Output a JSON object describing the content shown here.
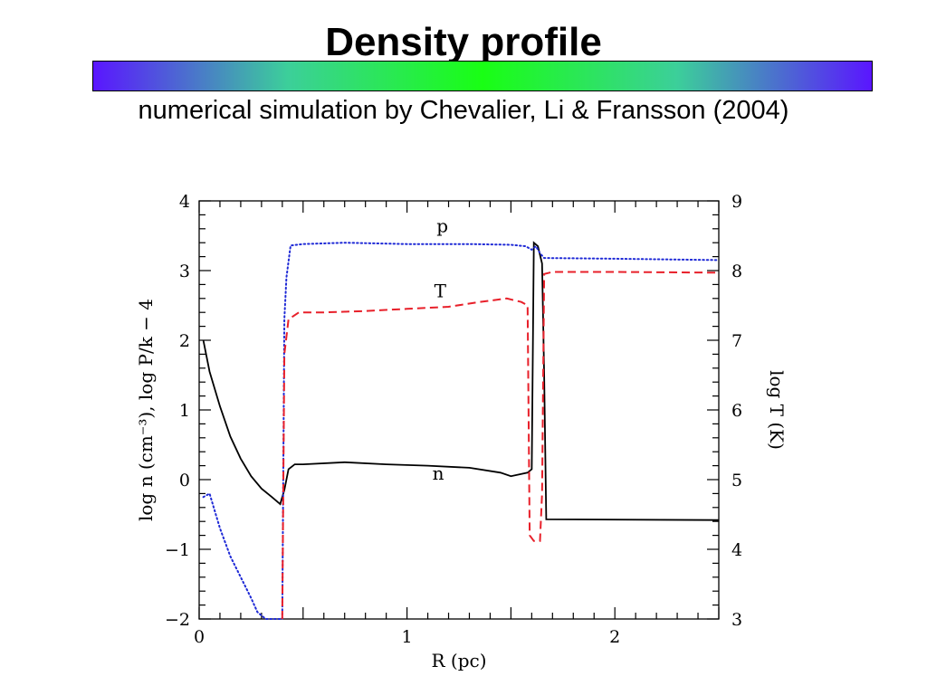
{
  "slide": {
    "title": "Density profile",
    "subtitle": "numerical simulation by Chevalier, Li & Fransson (2004)",
    "bar_colors": [
      "#5a16ff",
      "#3ccf9a",
      "#19ff14",
      "#3ccf9a",
      "#5a16ff"
    ]
  },
  "chart_data": {
    "type": "line",
    "title": "",
    "xlabel": "R (pc)",
    "ylabel_left": "log n (cm⁻³), log P/k − 4",
    "ylabel_right": "log T (K)",
    "xlim": [
      0,
      2.5
    ],
    "ylim_left": [
      -2,
      4
    ],
    "ylim_right": [
      3,
      9
    ],
    "x_ticks": [
      "0",
      "1",
      "2"
    ],
    "y_ticks_left": [
      "−2",
      "−1",
      "0",
      "1",
      "2",
      "3",
      "4"
    ],
    "y_ticks_right": [
      "3",
      "4",
      "5",
      "6",
      "7",
      "8",
      "9"
    ],
    "grid": false,
    "series": [
      {
        "name": "n",
        "axis": "left",
        "color": "#000000",
        "style": "solid",
        "label_at": [
          1.15,
          0.0
        ],
        "points": [
          [
            0.02,
            2.0
          ],
          [
            0.05,
            1.55
          ],
          [
            0.1,
            1.05
          ],
          [
            0.15,
            0.62
          ],
          [
            0.2,
            0.3
          ],
          [
            0.25,
            0.05
          ],
          [
            0.3,
            -0.13
          ],
          [
            0.35,
            -0.25
          ],
          [
            0.39,
            -0.35
          ],
          [
            0.41,
            -0.15
          ],
          [
            0.43,
            0.15
          ],
          [
            0.46,
            0.22
          ],
          [
            0.5,
            0.22
          ],
          [
            0.7,
            0.25
          ],
          [
            0.9,
            0.22
          ],
          [
            1.1,
            0.2
          ],
          [
            1.3,
            0.17
          ],
          [
            1.45,
            0.1
          ],
          [
            1.5,
            0.05
          ],
          [
            1.58,
            0.1
          ],
          [
            1.6,
            0.15
          ],
          [
            1.61,
            3.4
          ],
          [
            1.63,
            3.35
          ],
          [
            1.65,
            3.1
          ],
          [
            1.66,
            1.5
          ],
          [
            1.67,
            -0.57
          ],
          [
            2.5,
            -0.58
          ]
        ]
      },
      {
        "name": "p",
        "axis": "left",
        "color": "#1f2ad6",
        "style": "dotted",
        "label_at": [
          1.17,
          3.55
        ],
        "points": [
          [
            0.02,
            -0.25
          ],
          [
            0.05,
            -0.2
          ],
          [
            0.1,
            -0.7
          ],
          [
            0.15,
            -1.1
          ],
          [
            0.2,
            -1.4
          ],
          [
            0.25,
            -1.7
          ],
          [
            0.28,
            -1.9
          ],
          [
            0.32,
            -2.0
          ],
          [
            0.4,
            -2.0
          ],
          [
            0.41,
            2.3
          ],
          [
            0.42,
            2.9
          ],
          [
            0.44,
            3.36
          ],
          [
            0.5,
            3.38
          ],
          [
            0.7,
            3.4
          ],
          [
            1.0,
            3.38
          ],
          [
            1.3,
            3.38
          ],
          [
            1.5,
            3.37
          ],
          [
            1.57,
            3.35
          ],
          [
            1.6,
            3.3
          ],
          [
            1.62,
            3.35
          ],
          [
            1.64,
            3.25
          ],
          [
            1.66,
            3.18
          ],
          [
            2.0,
            3.17
          ],
          [
            2.5,
            3.15
          ]
        ]
      },
      {
        "name": "T",
        "axis": "right",
        "color": "#e8202a",
        "style": "dashed",
        "label_at": [
          1.16,
          7.62
        ],
        "points": [
          [
            0.4,
            3.0
          ],
          [
            0.41,
            6.8
          ],
          [
            0.43,
            7.3
          ],
          [
            0.48,
            7.4
          ],
          [
            0.6,
            7.4
          ],
          [
            0.8,
            7.42
          ],
          [
            1.0,
            7.45
          ],
          [
            1.2,
            7.48
          ],
          [
            1.35,
            7.55
          ],
          [
            1.48,
            7.6
          ],
          [
            1.55,
            7.55
          ],
          [
            1.58,
            7.5
          ],
          [
            1.59,
            4.2
          ],
          [
            1.61,
            4.12
          ],
          [
            1.64,
            4.12
          ],
          [
            1.65,
            4.8
          ],
          [
            1.66,
            7.95
          ],
          [
            1.7,
            7.98
          ],
          [
            2.0,
            7.98
          ],
          [
            2.5,
            7.97
          ]
        ]
      }
    ]
  }
}
